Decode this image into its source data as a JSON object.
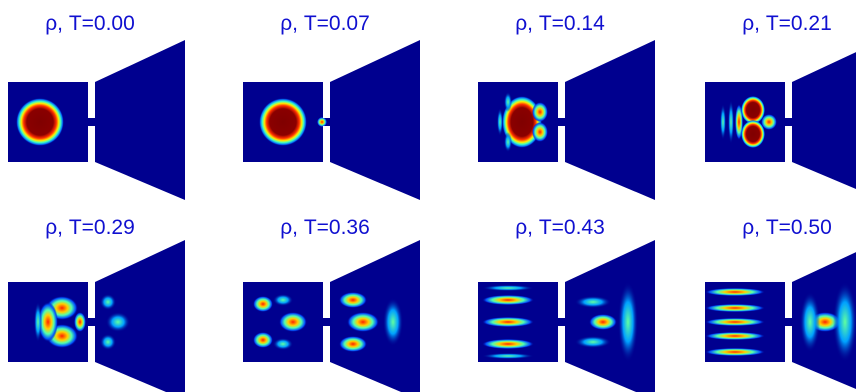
{
  "panels": [
    {
      "title": "ρ, T=0.00"
    },
    {
      "title": "ρ, T=0.07"
    },
    {
      "title": "ρ, T=0.14"
    },
    {
      "title": "ρ, T=0.21"
    },
    {
      "title": "ρ, T=0.29"
    },
    {
      "title": "ρ, T=0.36"
    },
    {
      "title": "ρ, T=0.43"
    },
    {
      "title": "ρ, T=0.50"
    }
  ]
}
